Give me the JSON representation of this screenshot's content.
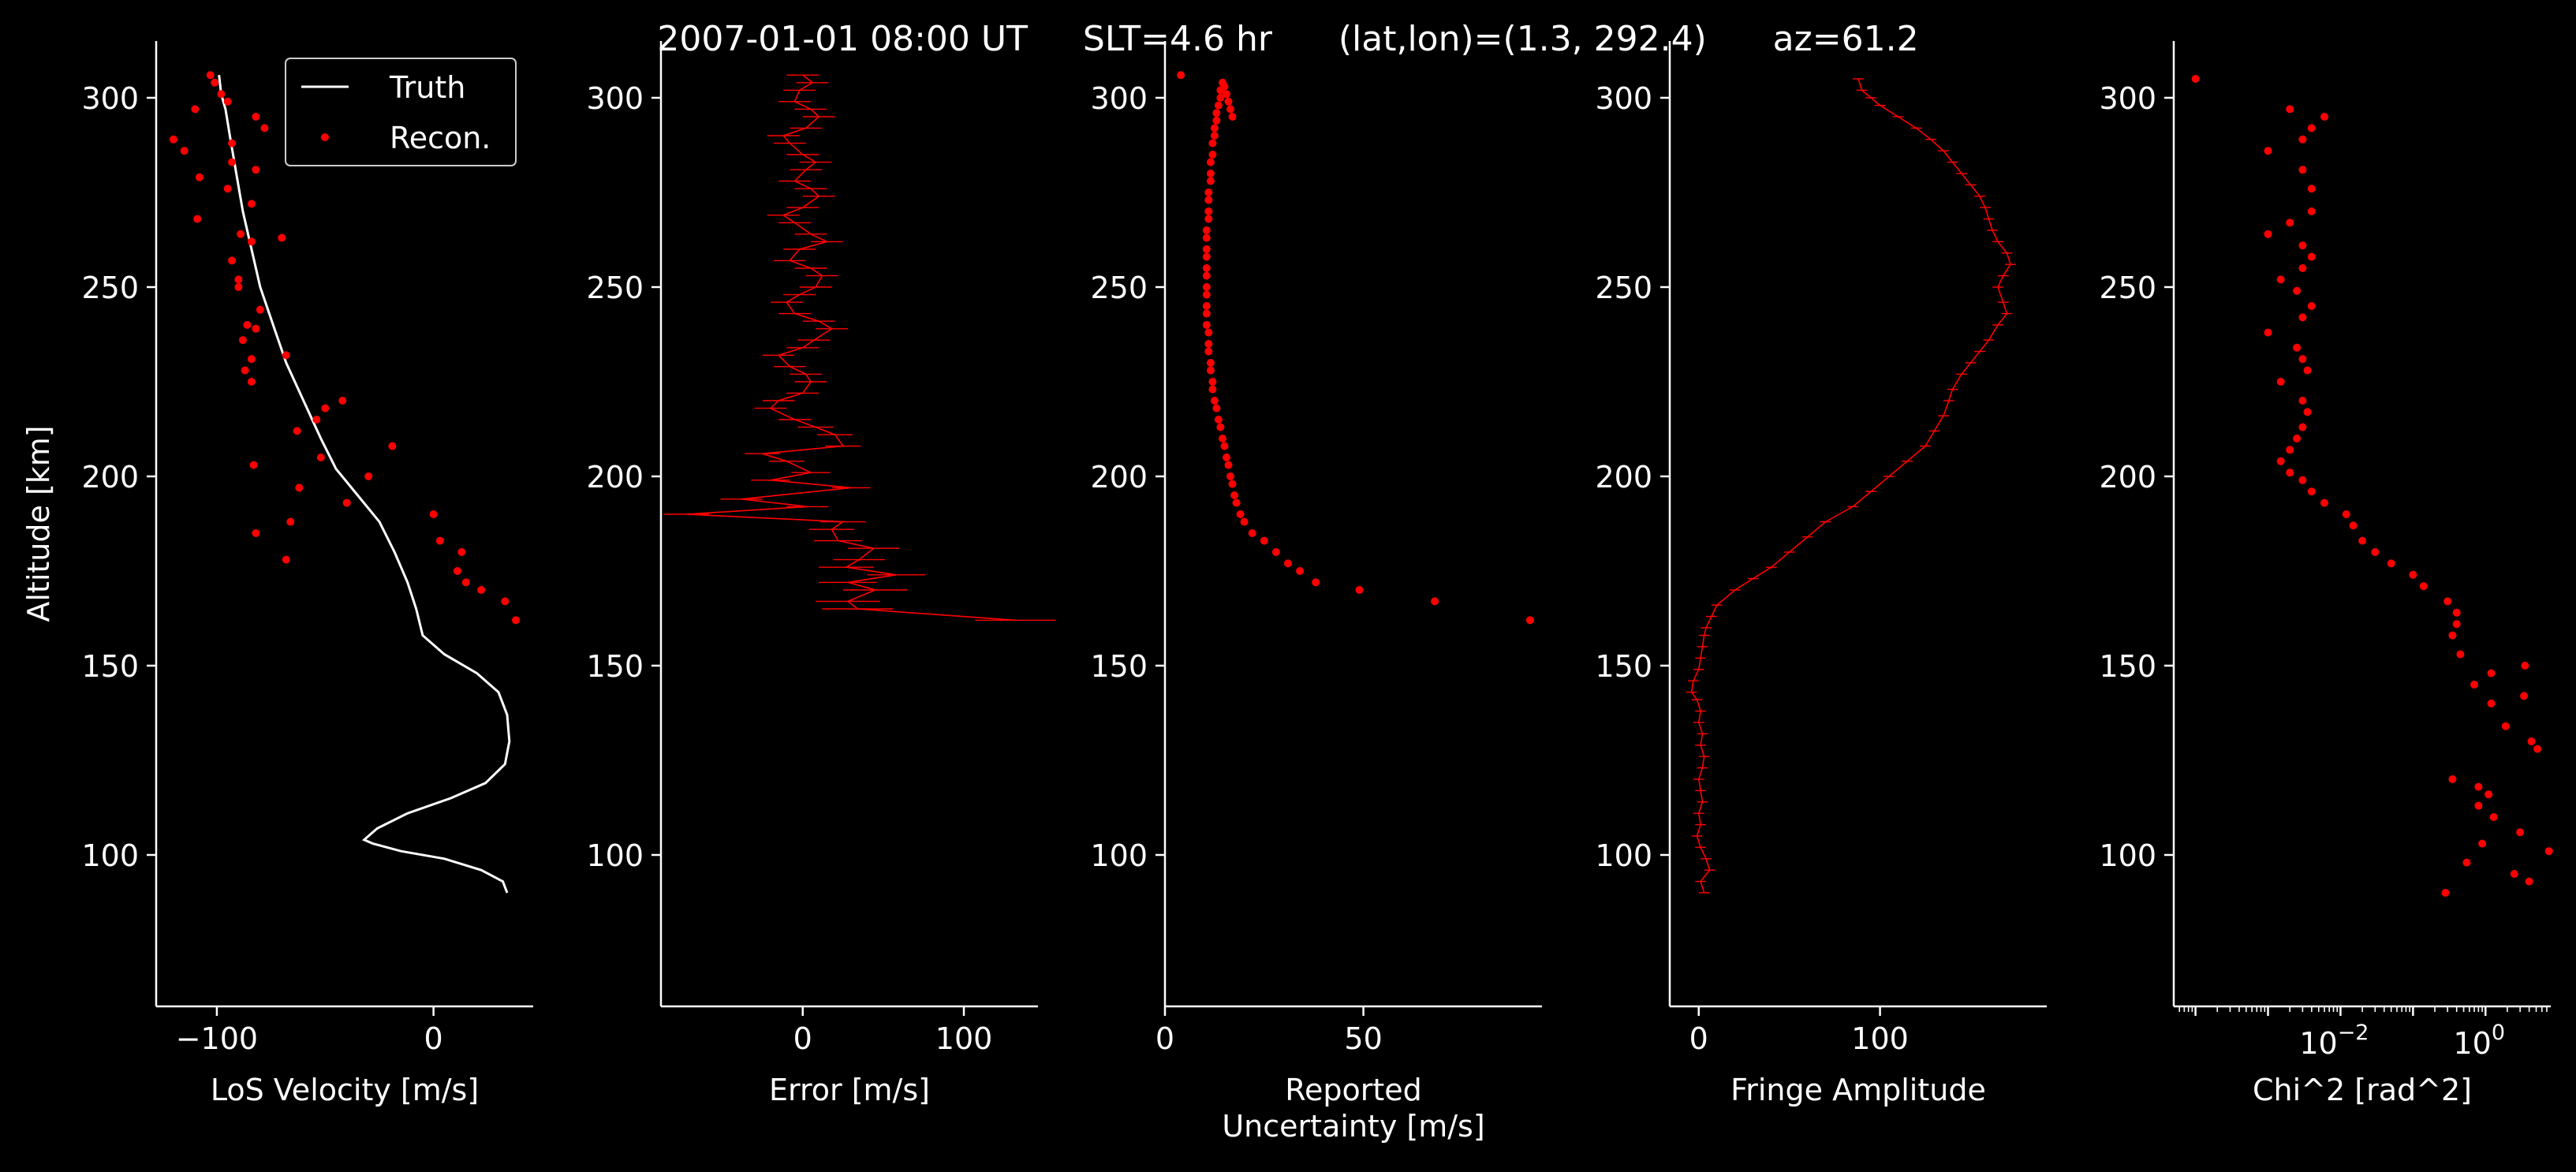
{
  "title": "2007-01-01 08:00 UT     SLT=4.6 hr      (lat,lon)=(1.3, 292.4)      az=61.2",
  "colors": {
    "background": "#000000",
    "axis": "#ffffff",
    "truth": "#ffffff",
    "recon": "#ff0000"
  },
  "chart_data": [
    {
      "type": "line",
      "xlabel": "LoS Velocity [m/s]",
      "ylabel": "Altitude [km]",
      "xscale": "linear",
      "xlim": [
        -128,
        46
      ],
      "ylim": [
        60,
        315
      ],
      "xticks": [
        -100,
        0
      ],
      "xtick_labels": [
        "−100",
        "0"
      ],
      "yticks": [
        100,
        150,
        200,
        250,
        300
      ],
      "ytick_labels": [
        "100",
        "150",
        "200",
        "250",
        "300"
      ],
      "legend": {
        "position": "top-right",
        "entries": [
          "Truth",
          "Recon."
        ]
      },
      "series": [
        {
          "name": "Truth",
          "style": "line",
          "x": [
            34,
            32,
            22,
            5,
            -15,
            -28,
            -32,
            -26,
            -12,
            8,
            24,
            33,
            35,
            34,
            30,
            20,
            5,
            -5,
            -8,
            -12,
            -18,
            -25,
            -35,
            -45,
            -52,
            -60,
            -68,
            -74,
            -80,
            -84,
            -88,
            -91,
            -94,
            -96,
            -98,
            -99
          ],
          "y": [
            90,
            93,
            96,
            99,
            101,
            103,
            104,
            107,
            111,
            115,
            119,
            124,
            130,
            137,
            143,
            148,
            153,
            158,
            165,
            172,
            180,
            188,
            195,
            202,
            210,
            220,
            230,
            240,
            250,
            260,
            270,
            280,
            290,
            297,
            301,
            306
          ]
        },
        {
          "name": "Recon.",
          "style": "points",
          "x": [
            38,
            33,
            22,
            15,
            11,
            13,
            3,
            0,
            -82,
            -68,
            -66,
            -62,
            -40,
            -30,
            -19,
            -83,
            -63,
            -52,
            -50,
            -54,
            -42,
            -87,
            -68,
            -84,
            -84,
            -82,
            -88,
            -80,
            -86,
            -90,
            -90,
            -93,
            -89,
            -84,
            -70,
            -109,
            -84,
            -95,
            -93,
            -82,
            -115,
            -108,
            -120,
            -93,
            -78,
            -110,
            -82,
            -95,
            -98,
            -101,
            -103
          ],
          "y": [
            162,
            167,
            170,
            172,
            175,
            180,
            183,
            190,
            185,
            178,
            188,
            197,
            193,
            200,
            208,
            203,
            212,
            205,
            218,
            215,
            220,
            228,
            232,
            225,
            231,
            239,
            236,
            244,
            240,
            250,
            252,
            257,
            264,
            262,
            263,
            268,
            272,
            276,
            283,
            281,
            286,
            279,
            289,
            288,
            292,
            297,
            295,
            299,
            301,
            304,
            306
          ]
        }
      ]
    },
    {
      "type": "line",
      "xlabel": "Error [m/s]",
      "xscale": "linear",
      "xlim": [
        -88,
        146
      ],
      "ylim": [
        60,
        315
      ],
      "xticks": [
        0,
        100
      ],
      "xtick_labels": [
        "0",
        "100"
      ],
      "yticks": [
        100,
        150,
        200,
        250,
        300
      ],
      "ytick_labels": [
        "100",
        "150",
        "200",
        "250",
        "300"
      ],
      "series": [
        {
          "style": "errorbar-line",
          "x": [
            132,
            34,
            28,
            45,
            28,
            58,
            27,
            35,
            44,
            22,
            18,
            25,
            -72,
            3,
            -38,
            30,
            -20,
            5,
            -10,
            -25,
            25,
            20,
            8,
            -5,
            -20,
            -15,
            0,
            5,
            2,
            -8,
            -15,
            0,
            7,
            18,
            10,
            -5,
            -10,
            -2,
            8,
            12,
            5,
            -8,
            -2,
            15,
            5,
            -5,
            -12,
            0,
            10,
            5,
            -5,
            2,
            8,
            0,
            -8,
            -12,
            2,
            10,
            5,
            -5,
            -2,
            6,
            0
          ],
          "y": [
            162,
            165,
            167,
            170,
            172,
            174,
            176,
            178,
            181,
            183,
            186,
            188,
            190,
            192,
            194,
            197,
            199,
            201,
            204,
            206,
            208,
            211,
            213,
            215,
            218,
            220,
            222,
            225,
            227,
            229,
            232,
            234,
            236,
            239,
            241,
            243,
            246,
            248,
            250,
            253,
            255,
            257,
            260,
            262,
            264,
            267,
            269,
            271,
            274,
            276,
            278,
            281,
            283,
            285,
            288,
            290,
            292,
            295,
            297,
            299,
            302,
            304,
            306
          ],
          "xerr": [
            25,
            22,
            20,
            20,
            18,
            18,
            17,
            16,
            16,
            15,
            14,
            14,
            14,
            13,
            13,
            12,
            12,
            12,
            11,
            11,
            11,
            11,
            11,
            10,
            10,
            10,
            10,
            10,
            10,
            10,
            10,
            10,
            10,
            10,
            10,
            10,
            10,
            10,
            10,
            10,
            10,
            10,
            10,
            10,
            10,
            10,
            10,
            10,
            10,
            10,
            10,
            10,
            10,
            10,
            10,
            10,
            10,
            10,
            10,
            10,
            10,
            10,
            10
          ]
        }
      ]
    },
    {
      "type": "scatter",
      "xlabel": "Reported\nUncertainty [m/s]",
      "xscale": "linear",
      "xlim": [
        0,
        95
      ],
      "ylim": [
        60,
        315
      ],
      "xticks": [
        0,
        50
      ],
      "xtick_labels": [
        "0",
        "50"
      ],
      "yticks": [
        100,
        150,
        200,
        250,
        300
      ],
      "ytick_labels": [
        "100",
        "150",
        "200",
        "250",
        "300"
      ],
      "series": [
        {
          "style": "points",
          "x": [
            92,
            68,
            49,
            38,
            34,
            31,
            28,
            25,
            22,
            20,
            19,
            18,
            17.5,
            17,
            16.5,
            16,
            15.5,
            15,
            14.5,
            14,
            13.5,
            13,
            12.5,
            12,
            12,
            11.5,
            11.5,
            11,
            11,
            11,
            10.5,
            10.5,
            10.5,
            10.5,
            10.5,
            10.5,
            10.5,
            10.5,
            10.5,
            10.5,
            10.5,
            11,
            11,
            11,
            11,
            11.5,
            11.5,
            11.5,
            12,
            12,
            12.5,
            12.5,
            13,
            13,
            13.5,
            14,
            14,
            14.5,
            15,
            15.5,
            16,
            16.5,
            17,
            4
          ],
          "y": [
            162,
            167,
            170,
            172,
            175,
            177,
            180,
            183,
            185,
            188,
            190,
            193,
            195,
            198,
            200,
            203,
            205,
            208,
            210,
            213,
            215,
            218,
            220,
            223,
            225,
            228,
            230,
            233,
            235,
            238,
            240,
            243,
            245,
            248,
            250,
            253,
            255,
            258,
            260,
            263,
            265,
            268,
            270,
            273,
            275,
            278,
            280,
            283,
            285,
            288,
            290,
            292,
            294,
            296,
            298,
            300,
            302,
            304,
            303,
            301,
            299,
            297,
            295,
            306
          ]
        }
      ]
    },
    {
      "type": "line",
      "xlabel": "Fringe Amplitude",
      "xscale": "linear",
      "xlim": [
        -16,
        192
      ],
      "ylim": [
        60,
        315
      ],
      "xticks": [
        0,
        100
      ],
      "xtick_labels": [
        "0",
        "100"
      ],
      "yticks": [
        100,
        150,
        200,
        250,
        300
      ],
      "ytick_labels": [
        "100",
        "150",
        "200",
        "250",
        "300"
      ],
      "series": [
        {
          "style": "errorbar-line",
          "x": [
            3,
            1,
            6,
            4,
            1,
            -1,
            1,
            0,
            2,
            1,
            0,
            2,
            3,
            1,
            2,
            0,
            1,
            -1,
            -4,
            -3,
            0,
            1,
            2,
            3,
            4,
            7,
            10,
            20,
            30,
            40,
            50,
            60,
            70,
            85,
            95,
            105,
            115,
            125,
            130,
            135,
            138,
            140,
            145,
            150,
            155,
            160,
            165,
            170,
            168,
            165,
            168,
            172,
            170,
            165,
            162,
            160,
            158,
            155,
            150,
            145,
            140,
            135,
            128,
            120,
            110,
            100,
            95,
            90,
            88
          ],
          "y": [
            90,
            93,
            96,
            99,
            102,
            105,
            108,
            111,
            114,
            117,
            120,
            123,
            126,
            129,
            132,
            135,
            138,
            141,
            143,
            146,
            149,
            152,
            155,
            158,
            160,
            163,
            166,
            170,
            173,
            176,
            180,
            184,
            188,
            192,
            196,
            200,
            204,
            208,
            212,
            216,
            220,
            223,
            227,
            230,
            233,
            236,
            240,
            243,
            246,
            250,
            253,
            256,
            259,
            262,
            265,
            268,
            271,
            274,
            277,
            280,
            283,
            286,
            289,
            292,
            295,
            298,
            300,
            302,
            305
          ],
          "xerr": [
            3,
            3,
            3,
            3,
            3,
            3,
            3,
            3,
            3,
            3,
            3,
            3,
            3,
            3,
            3,
            3,
            3,
            3,
            3,
            3,
            3,
            3,
            3,
            3,
            3,
            3,
            3,
            3,
            3,
            3,
            3,
            3,
            3,
            3,
            3,
            3,
            3,
            3,
            3,
            3,
            3,
            3,
            3,
            3,
            3,
            3,
            3,
            3,
            3,
            3,
            3,
            3,
            3,
            3,
            3,
            3,
            3,
            3,
            3,
            3,
            3,
            3,
            3,
            3,
            3,
            3,
            3,
            3,
            3
          ]
        }
      ]
    },
    {
      "type": "scatter",
      "xlabel": "Chi^2 [rad^2]",
      "xscale": "log",
      "xlim_log10": [
        -4.3,
        0.9
      ],
      "ylim": [
        60,
        315
      ],
      "xticks_log10": [
        -2,
        0
      ],
      "xtick_labels": [
        "10",
        "10"
      ],
      "xtick_exponents": [
        "−2",
        "0"
      ],
      "yticks": [
        100,
        150,
        200,
        250,
        300
      ],
      "ytick_labels": [
        "100",
        "150",
        "200",
        "250",
        "300"
      ],
      "series": [
        {
          "style": "points",
          "x": [
            0.28,
            4.0,
            2.5,
            0.55,
            7.5,
            0.9,
            3.0,
            1.3,
            0.8,
            1.1,
            0.8,
            0.35,
            5.2,
            4.3,
            1.9,
            3.4,
            1.2,
            0.7,
            3.5,
            1.2,
            0.45,
            0.35,
            0.4,
            0.4,
            0.3,
            0.14,
            0.1,
            0.05,
            0.03,
            0.02,
            0.015,
            0.012,
            0.006,
            0.004,
            0.003,
            0.002,
            0.0015,
            0.002,
            0.0025,
            0.003,
            0.0035,
            0.003,
            0.0015,
            0.0035,
            0.003,
            0.0025,
            0.001,
            0.003,
            0.004,
            0.0025,
            0.0015,
            0.003,
            0.004,
            0.003,
            0.001,
            0.002,
            0.004,
            0.004,
            0.003,
            0.001,
            0.003,
            0.004,
            0.006,
            0.002,
            0.0001
          ],
          "y": [
            90,
            93,
            95,
            98,
            101,
            103,
            106,
            110,
            113,
            116,
            118,
            120,
            128,
            130,
            134,
            142,
            140,
            145,
            150,
            148,
            153,
            158,
            161,
            164,
            167,
            171,
            174,
            177,
            180,
            183,
            187,
            190,
            193,
            196,
            199,
            201,
            204,
            207,
            210,
            213,
            217,
            220,
            225,
            228,
            231,
            234,
            238,
            242,
            245,
            249,
            252,
            255,
            258,
            261,
            264,
            267,
            270,
            276,
            281,
            286,
            289,
            292,
            295,
            297,
            305
          ]
        }
      ]
    }
  ]
}
